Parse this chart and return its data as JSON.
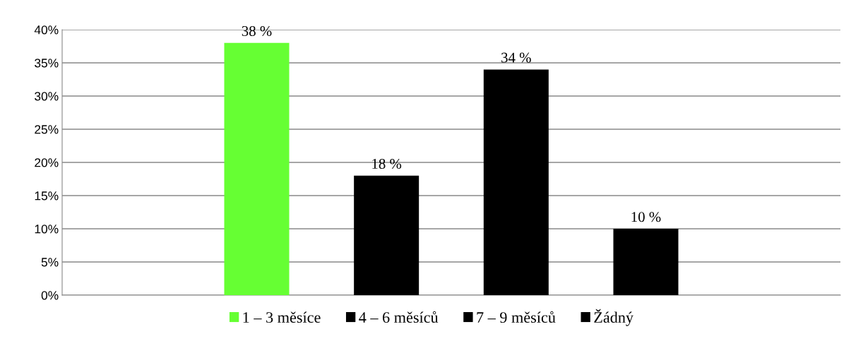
{
  "chart_data": {
    "type": "bar",
    "categories": [
      null
    ],
    "series": [
      {
        "name": "1 – 3 měsíce",
        "color": "#66ff33",
        "values": [
          38
        ],
        "value_labels": [
          "38 %"
        ]
      },
      {
        "name": "4 – 6 měsíců",
        "color": "#000000",
        "values": [
          18
        ],
        "value_labels": [
          "18 %"
        ]
      },
      {
        "name": "7 – 9 měsíců",
        "color": "#000000",
        "values": [
          34
        ],
        "value_labels": [
          "34 %"
        ]
      },
      {
        "name": "Žádný",
        "color": "#000000",
        "values": [
          10
        ],
        "value_labels": [
          "10 %"
        ]
      }
    ],
    "ylim": [
      0,
      40
    ],
    "yticks": [
      {
        "value": 0,
        "label": "0%"
      },
      {
        "value": 5,
        "label": "5%"
      },
      {
        "value": 10,
        "label": "10%"
      },
      {
        "value": 15,
        "label": "15%"
      },
      {
        "value": 20,
        "label": "20%"
      },
      {
        "value": 25,
        "label": "25%"
      },
      {
        "value": 30,
        "label": "30%"
      },
      {
        "value": 35,
        "label": "35%"
      },
      {
        "value": 40,
        "label": "40%"
      }
    ],
    "grid": "y",
    "legend": "bottom"
  }
}
